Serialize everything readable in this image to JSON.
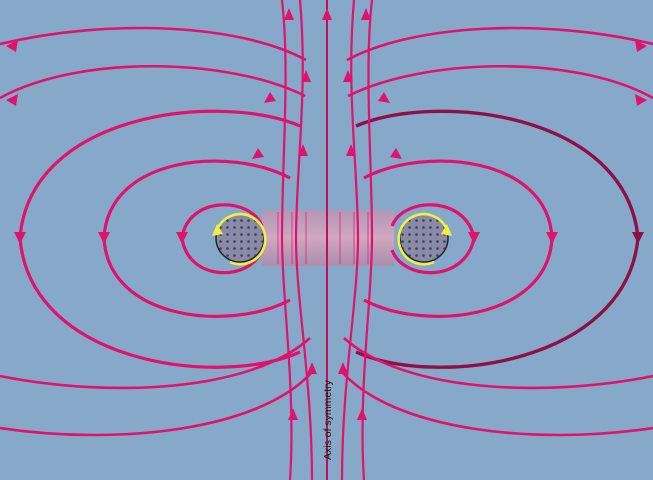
{
  "diagram": {
    "axis_label": "Axis of symmetry",
    "colors": {
      "background": "#86a9c9",
      "field_line": "#e0126e",
      "field_line_dark": "#8e1048",
      "coil_fill": "#8a8aa0",
      "coil_ring": "#f0f040",
      "coil_dots": "#2e3a8c",
      "tube": "#d88aa3"
    },
    "icons": [
      "left-coil-cross-section-icon",
      "right-coil-cross-section-icon",
      "circulation-arrow-icon",
      "field-direction-arrow-icon"
    ]
  }
}
